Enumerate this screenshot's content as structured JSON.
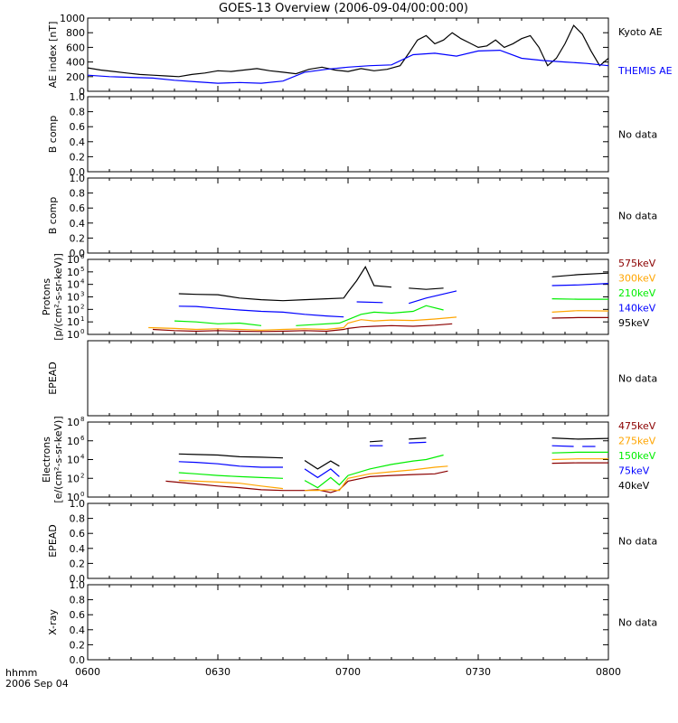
{
  "title": "GOES-13 Overview (2006-09-04/00:00:00)",
  "x_axis": {
    "ticks": [
      "0600",
      "0630",
      "0700",
      "0730",
      "0800"
    ],
    "corner_label_1": "hhmm",
    "corner_label_2": "2006 Sep 04"
  },
  "chart_data": [
    {
      "type": "line",
      "ylabel": "AE index [nT]",
      "ylim": [
        0,
        1000
      ],
      "yticks": [
        "0",
        "200",
        "400",
        "600",
        "800",
        "1000"
      ],
      "xlim": [
        "06:00",
        "08:00"
      ],
      "series": [
        {
          "name": "Kyoto AE",
          "color": "#000000",
          "x": [
            "06:00",
            "06:03",
            "06:06",
            "06:09",
            "06:12",
            "06:15",
            "06:18",
            "06:21",
            "06:24",
            "06:27",
            "06:30",
            "06:33",
            "06:36",
            "06:39",
            "06:42",
            "06:45",
            "06:48",
            "06:51",
            "06:54",
            "06:57",
            "07:00",
            "07:03",
            "07:06",
            "07:09",
            "07:12",
            "07:14",
            "07:16",
            "07:18",
            "07:20",
            "07:22",
            "07:24",
            "07:26",
            "07:28",
            "07:30",
            "07:32",
            "07:34",
            "07:36",
            "07:38",
            "07:40",
            "07:42",
            "07:44",
            "07:46",
            "07:48",
            "07:50",
            "07:52",
            "07:54",
            "07:56",
            "07:58",
            "08:00"
          ],
          "y": [
            320,
            290,
            270,
            250,
            230,
            220,
            210,
            200,
            230,
            250,
            280,
            270,
            290,
            310,
            280,
            260,
            240,
            300,
            330,
            290,
            270,
            310,
            280,
            300,
            350,
            520,
            700,
            760,
            650,
            700,
            800,
            720,
            660,
            600,
            620,
            700,
            600,
            650,
            720,
            760,
            600,
            350,
            450,
            650,
            900,
            780,
            550,
            350,
            450
          ]
        },
        {
          "name": "THEMIS AE",
          "color": "#0000ff",
          "x": [
            "06:00",
            "06:05",
            "06:10",
            "06:15",
            "06:20",
            "06:25",
            "06:30",
            "06:35",
            "06:40",
            "06:45",
            "06:50",
            "06:55",
            "07:00",
            "07:05",
            "07:10",
            "07:15",
            "07:20",
            "07:25",
            "07:30",
            "07:35",
            "07:40",
            "07:45",
            "07:50",
            "07:55",
            "08:00"
          ],
          "y": [
            220,
            200,
            190,
            180,
            150,
            130,
            110,
            120,
            110,
            140,
            260,
            300,
            330,
            350,
            360,
            500,
            520,
            480,
            550,
            560,
            450,
            420,
            400,
            380,
            350
          ]
        }
      ]
    },
    {
      "type": "line",
      "ylabel": "B comp",
      "ylim": [
        0,
        1
      ],
      "yticks": [
        "0.0",
        "0.2",
        "0.4",
        "0.6",
        "0.8",
        "1.0"
      ],
      "series": [],
      "note": "No data"
    },
    {
      "type": "line",
      "ylabel": "B comp",
      "ylim": [
        0,
        1
      ],
      "yticks": [
        "0.0",
        "0.2",
        "0.4",
        "0.6",
        "0.8",
        "1.0"
      ],
      "series": [],
      "note": "No data"
    },
    {
      "type": "line",
      "ylabel": "Protons",
      "ylabel2": "[p/(cm²-s-sr-keV)]",
      "yscale": "log",
      "ylim": [
        1,
        1000000
      ],
      "ytick_exponents": [
        "0",
        "1",
        "2",
        "3",
        "4",
        "5",
        "6"
      ],
      "series": [
        {
          "name": "575keV",
          "color": "#8b0000",
          "segments": [
            {
              "x": [
                "06:15",
                "06:20",
                "06:25",
                "06:30",
                "06:35",
                "06:40",
                "06:45",
                "06:50",
                "06:55",
                "06:59",
                "07:00",
                "07:03",
                "07:06",
                "07:10",
                "07:15",
                "07:20",
                "07:24"
              ],
              "y": [
                2.5,
                2.0,
                1.8,
                2.0,
                1.8,
                1.7,
                1.8,
                2.0,
                1.8,
                2.5,
                3.0,
                4.0,
                4.5,
                5.0,
                4.5,
                5.5,
                7.0
              ]
            },
            {
              "x": [
                "07:47",
                "07:53",
                "08:00"
              ],
              "y": [
                20,
                22,
                22
              ]
            }
          ]
        },
        {
          "name": "300keV",
          "color": "#ffa500",
          "segments": [
            {
              "x": [
                "06:14",
                "06:20",
                "06:25",
                "06:30",
                "06:35",
                "06:40",
                "06:45",
                "06:50",
                "06:55",
                "06:59",
                "07:00",
                "07:03",
                "07:06",
                "07:10",
                "07:15",
                "07:20",
                "07:25"
              ],
              "y": [
                3.5,
                3.0,
                2.5,
                2.8,
                2.5,
                2.2,
                2.5,
                2.8,
                2.5,
                3.5,
                8,
                15,
                12,
                14,
                13,
                17,
                24
              ]
            },
            {
              "x": [
                "07:47",
                "07:53",
                "08:00"
              ],
              "y": [
                60,
                80,
                75
              ]
            }
          ]
        },
        {
          "name": "210keV",
          "color": "#00ee00",
          "segments": [
            {
              "x": [
                "06:20",
                "06:25",
                "06:30",
                "06:35",
                "06:40"
              ],
              "y": [
                12,
                10,
                7,
                8,
                5
              ]
            },
            {
              "x": [
                "06:48",
                "06:52",
                "06:58",
                "07:00",
                "07:03",
                "07:06",
                "07:10",
                "07:15",
                "07:18",
                "07:22"
              ],
              "y": [
                5,
                6,
                8,
                15,
                40,
                60,
                50,
                70,
                200,
                90
              ]
            },
            {
              "x": [
                "07:47",
                "07:53",
                "08:00"
              ],
              "y": [
                700,
                650,
                650
              ]
            }
          ]
        },
        {
          "name": "140keV",
          "color": "#0000ff",
          "segments": [
            {
              "x": [
                "06:21",
                "06:25",
                "06:30",
                "06:35",
                "06:40",
                "06:45",
                "06:50",
                "06:55",
                "06:59"
              ],
              "y": [
                180,
                170,
                120,
                90,
                70,
                60,
                40,
                30,
                25
              ]
            },
            {
              "x": [
                "07:02",
                "07:08"
              ],
              "y": [
                400,
                350
              ]
            },
            {
              "x": [
                "07:14",
                "07:18",
                "07:25"
              ],
              "y": [
                300,
                800,
                3000
              ]
            },
            {
              "x": [
                "07:47",
                "07:53",
                "08:00"
              ],
              "y": [
                8000,
                9000,
                12000
              ]
            }
          ]
        },
        {
          "name": "95keV",
          "color": "#000000",
          "segments": [
            {
              "x": [
                "06:21",
                "06:25",
                "06:30",
                "06:35",
                "06:40",
                "06:45",
                "06:50",
                "06:55",
                "06:59",
                "07:00",
                "07:02",
                "07:04",
                "07:06",
                "07:10"
              ],
              "y": [
                1800,
                1600,
                1500,
                800,
                600,
                500,
                600,
                700,
                800,
                2500,
                20000,
                250000,
                8000,
                6000
              ]
            },
            {
              "x": [
                "07:14",
                "07:18",
                "07:22"
              ],
              "y": [
                5000,
                4000,
                5000
              ]
            },
            {
              "x": [
                "07:47",
                "07:53",
                "08:00"
              ],
              "y": [
                40000,
                60000,
                80000
              ]
            }
          ]
        }
      ]
    },
    {
      "type": "line",
      "ylabel": "EPEAD",
      "series": [],
      "note": "No data"
    },
    {
      "type": "line",
      "ylabel": "Electrons",
      "ylabel2": "[e/(cm²-s-sr-keV)]",
      "yscale": "log",
      "ylim": [
        1,
        100000000
      ],
      "ytick_exponents": [
        "0",
        "2",
        "4",
        "6",
        "8"
      ],
      "series": [
        {
          "name": "475keV",
          "color": "#8b0000",
          "segments": [
            {
              "x": [
                "06:18",
                "06:25",
                "06:30",
                "06:35",
                "06:40",
                "06:45",
                "06:50",
                "06:53",
                "06:56",
                "06:58",
                "07:00",
                "07:05",
                "07:10",
                "07:15",
                "07:20",
                "07:23"
              ],
              "y": [
                50,
                25,
                15,
                10,
                6,
                5,
                5,
                6,
                3,
                6,
                50,
                150,
                200,
                250,
                300,
                600
              ]
            },
            {
              "x": [
                "07:47",
                "07:53",
                "08:00"
              ],
              "y": [
                4000,
                4500,
                4500
              ]
            }
          ]
        },
        {
          "name": "275keV",
          "color": "#ffa500",
          "segments": [
            {
              "x": [
                "06:21",
                "06:25",
                "06:30",
                "06:35",
                "06:40",
                "06:45"
              ],
              "y": [
                60,
                50,
                40,
                30,
                15,
                8
              ]
            },
            {
              "x": [
                "06:50",
                "06:53",
                "06:56",
                "06:58",
                "07:00",
                "07:05",
                "07:10",
                "07:15",
                "07:20",
                "07:23"
              ],
              "y": [
                5,
                5,
                6,
                5,
                100,
                300,
                500,
                800,
                1500,
                2000
              ]
            },
            {
              "x": [
                "07:47",
                "07:53",
                "08:00"
              ],
              "y": [
                10000,
                12000,
                12000
              ]
            }
          ]
        },
        {
          "name": "150keV",
          "color": "#00ee00",
          "segments": [
            {
              "x": [
                "06:21",
                "06:25",
                "06:30",
                "06:35",
                "06:40",
                "06:45"
              ],
              "y": [
                400,
                300,
                200,
                150,
                120,
                100
              ]
            },
            {
              "x": [
                "06:50",
                "06:53",
                "06:56",
                "06:58",
                "07:00",
                "07:05",
                "07:10",
                "07:15",
                "07:18",
                "07:22"
              ],
              "y": [
                60,
                10,
                120,
                20,
                200,
                1000,
                3000,
                7000,
                10000,
                30000
              ]
            },
            {
              "x": [
                "07:47",
                "07:53",
                "08:00"
              ],
              "y": [
                50000,
                60000,
                60000
              ]
            }
          ]
        },
        {
          "name": "75keV",
          "color": "#0000ff",
          "segments": [
            {
              "x": [
                "06:21",
                "06:25",
                "06:30",
                "06:35",
                "06:40",
                "06:45"
              ],
              "y": [
                6000,
                5000,
                3500,
                2000,
                1500,
                1500
              ]
            },
            {
              "x": [
                "06:50",
                "06:53",
                "06:56",
                "06:58"
              ],
              "y": [
                1000,
                120,
                1000,
                150
              ]
            },
            {
              "x": [
                "07:05",
                "07:08"
              ],
              "y": [
                300000,
                300000
              ]
            },
            {
              "x": [
                "07:14",
                "07:18"
              ],
              "y": [
                600000,
                700000
              ]
            },
            {
              "x": [
                "07:47",
                "07:52"
              ],
              "y": [
                300000,
                250000
              ]
            },
            {
              "x": [
                "07:54",
                "07:57"
              ],
              "y": [
                250000,
                250000
              ]
            }
          ]
        },
        {
          "name": "40keV",
          "color": "#000000",
          "segments": [
            {
              "x": [
                "06:21",
                "06:25",
                "06:30",
                "06:35",
                "06:40",
                "06:45"
              ],
              "y": [
                40000,
                35000,
                30000,
                20000,
                18000,
                15000
              ]
            },
            {
              "x": [
                "06:50",
                "06:53",
                "06:56",
                "06:58"
              ],
              "y": [
                8000,
                1000,
                7000,
                2000
              ]
            },
            {
              "x": [
                "07:05",
                "07:08"
              ],
              "y": [
                800000,
                1000000
              ]
            },
            {
              "x": [
                "07:14",
                "07:18"
              ],
              "y": [
                1500000,
                2000000
              ]
            },
            {
              "x": [
                "07:47",
                "07:53",
                "08:00"
              ],
              "y": [
                2000000,
                1500000,
                1800000
              ]
            }
          ]
        }
      ]
    },
    {
      "type": "line",
      "ylabel": "EPEAD",
      "ylim": [
        0,
        1
      ],
      "yticks": [
        "0.0",
        "0.2",
        "0.4",
        "0.6",
        "0.8",
        "1.0"
      ],
      "series": [],
      "note": "No data"
    },
    {
      "type": "line",
      "ylabel": "X-ray",
      "ylim": [
        0,
        1
      ],
      "yticks": [
        "0.0",
        "0.2",
        "0.4",
        "0.6",
        "0.8",
        "1.0"
      ],
      "series": [],
      "note": "No data"
    }
  ]
}
